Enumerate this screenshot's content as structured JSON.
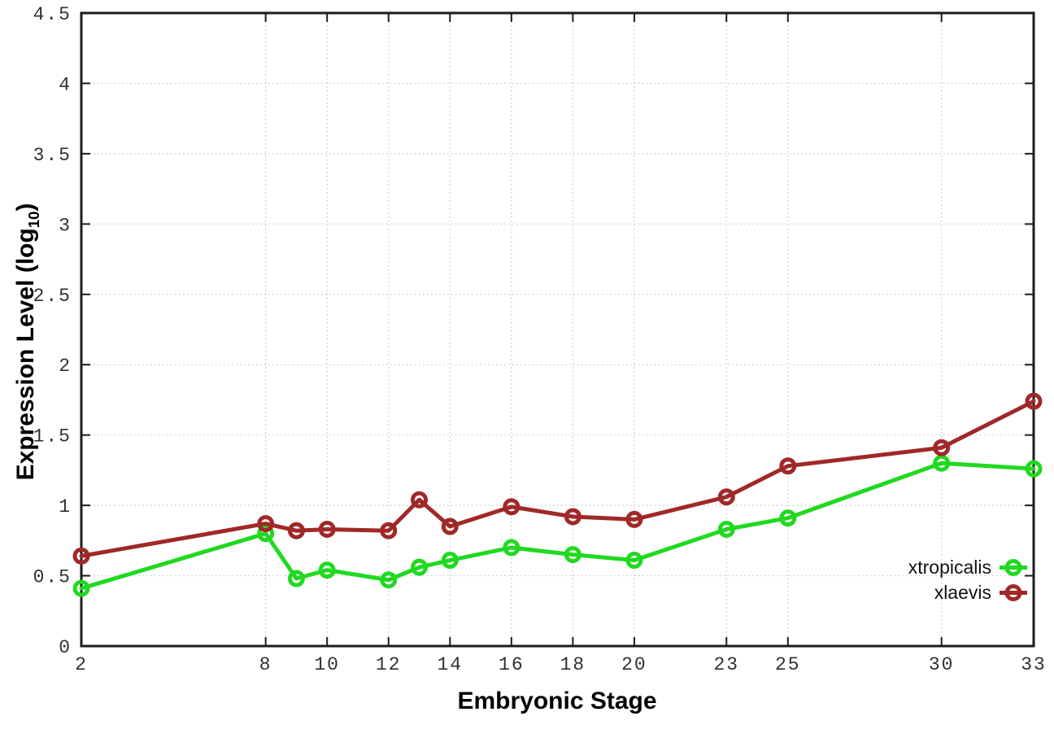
{
  "chart_data": {
    "type": "line",
    "title": "",
    "xlabel": "Embryonic Stage",
    "ylabel_main": "Expression Level (log",
    "ylabel_sub": "10",
    "ylabel_close": ")",
    "x": [
      2,
      8,
      9,
      10,
      12,
      13,
      14,
      16,
      18,
      20,
      23,
      25,
      30,
      33
    ],
    "series": [
      {
        "name": "xtropicalis",
        "color": "#20d920",
        "values": [
          0.41,
          0.8,
          0.48,
          0.54,
          0.47,
          0.56,
          0.61,
          0.7,
          0.65,
          0.61,
          0.83,
          0.91,
          1.3,
          1.26
        ]
      },
      {
        "name": "xlaevis",
        "color": "#a02828",
        "values": [
          0.64,
          0.87,
          0.82,
          0.83,
          0.82,
          1.04,
          0.85,
          0.99,
          0.92,
          0.9,
          1.06,
          1.28,
          1.41,
          1.74
        ]
      }
    ],
    "xticks": [
      2,
      8,
      10,
      12,
      14,
      16,
      18,
      20,
      23,
      25,
      30,
      33
    ],
    "yticks": [
      0,
      0.5,
      1,
      1.5,
      2,
      2.5,
      3,
      3.5,
      4,
      4.5
    ],
    "xlim": [
      2,
      33
    ],
    "ylim": [
      0,
      4.5
    ],
    "grid": true,
    "legend_position": "inside-right-bottom",
    "colors": {
      "border": "#1c1c1c",
      "gridline": "#c4c4c4",
      "tick_label": "#303030"
    }
  }
}
